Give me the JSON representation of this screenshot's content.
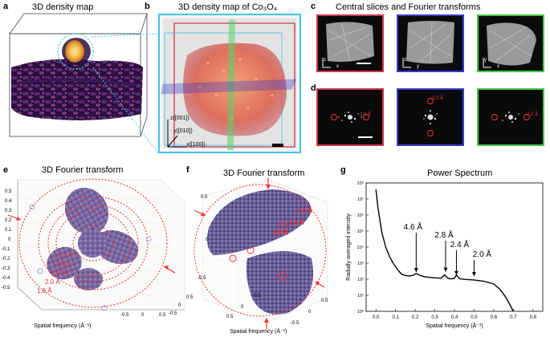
{
  "panels": {
    "a": {
      "label": "a",
      "title": "3D density map"
    },
    "b": {
      "label": "b",
      "title": "3D density map of Co₃O₄",
      "axes": {
        "z": "z([001])",
        "y": "y([010])",
        "x": "x([100])"
      }
    },
    "c": {
      "label": "c",
      "title": "Central slices and Fourier transforms",
      "axis_labels": [
        {
          "v": "z",
          "h": "x"
        },
        {
          "v": "z",
          "h": "y"
        },
        {
          "v": "y",
          "h": "x"
        }
      ]
    },
    "d": {
      "label": "d",
      "annotations": [
        "2.0 Å",
        "2.0 Å",
        "2.0 Å"
      ]
    },
    "e": {
      "label": "e",
      "title": "3D Fourier transform",
      "ring_labels": [
        "4.6 Å",
        "2.8 Å",
        "2.4 Å",
        "2.0 Å",
        "1.6 Å"
      ],
      "y_ticks": [
        "0.5",
        "0.4",
        "0.3",
        "0.2",
        "0.1",
        "0",
        "-0.1",
        "-0.2",
        "-0.3",
        "-0.4",
        "-0.5"
      ],
      "z_ticks": [
        "0.5",
        "0",
        "-0.5"
      ],
      "x_ticks": [
        "-0.5",
        "0",
        "0.5"
      ],
      "xlabel": "Spatial frequency (Å⁻¹)"
    },
    "f": {
      "label": "f",
      "title": "3D Fourier transform",
      "ring_labels": [
        "1.6 Å",
        "2.8 Å",
        "4.6 Å"
      ],
      "y_ticks": [
        "0.5",
        "0",
        "-0.5"
      ],
      "x_ticks": [
        "0.5",
        "0",
        "-0.5"
      ],
      "z_ticks": [
        "-0.5",
        "0",
        "0.5"
      ],
      "xlabel": "Spatial frequency (Å⁻¹)"
    },
    "g": {
      "label": "g",
      "title": "Power Spectrum"
    }
  },
  "chart_data": {
    "type": "line",
    "title": "Power Spectrum",
    "xlabel": "Spatial frequency (Å⁻¹)",
    "ylabel": "Radially averaged intensity",
    "xlim": [
      -0.05,
      0.85
    ],
    "ylim_log10": [
      0,
      8
    ],
    "x_ticks": [
      "0.0",
      "0.1",
      "0.2",
      "0.3",
      "0.4",
      "0.5",
      "0.6",
      "0.7",
      "0.8"
    ],
    "y_ticks": [
      "10⁰",
      "10¹",
      "10²",
      "10³",
      "10⁴",
      "10⁵",
      "10⁶",
      "10⁷",
      "10⁸"
    ],
    "x": [
      0.0,
      0.01,
      0.02,
      0.03,
      0.05,
      0.07,
      0.09,
      0.11,
      0.13,
      0.15,
      0.17,
      0.19,
      0.205,
      0.22,
      0.25,
      0.29,
      0.33,
      0.35,
      0.365,
      0.38,
      0.4,
      0.41,
      0.425,
      0.45,
      0.5,
      0.55,
      0.6,
      0.63,
      0.66,
      0.68,
      0.7
    ],
    "values": [
      40000000,
      3000000,
      500000,
      80000,
      10000,
      2500,
      900,
      400,
      210,
      170,
      160,
      175,
      230,
      180,
      140,
      125,
      115,
      185,
      120,
      105,
      115,
      185,
      110,
      98,
      90,
      75,
      50,
      25,
      8,
      3,
      1
    ],
    "annotations": [
      {
        "text": "4.6 Å",
        "x": 0.205
      },
      {
        "text": "2.8 Å",
        "x": 0.355
      },
      {
        "text": "2.4 Å",
        "x": 0.41
      },
      {
        "text": "2.0 Å",
        "x": 0.5
      }
    ]
  }
}
